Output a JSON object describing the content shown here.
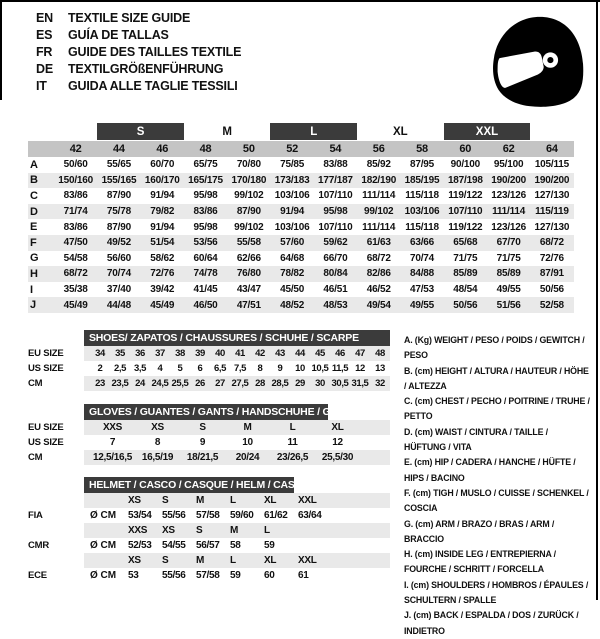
{
  "title_block": {
    "rows": [
      {
        "code": "EN",
        "text": "TEXTILE SIZE GUIDE"
      },
      {
        "code": "ES",
        "text": "GUÍA DE TALLAS"
      },
      {
        "code": "FR",
        "text": "GUIDE DES TAILLES TEXTILE"
      },
      {
        "code": "DE",
        "text": "TEXTILGRÖßENFÜHRUNG"
      },
      {
        "code": "IT",
        "text": "GUIDA ALLE TAGLIE TESSILI"
      }
    ]
  },
  "logo": {
    "icon": "racing-helmet-icon"
  },
  "colors": {
    "dark_bar": "#3b3b3b",
    "size_band": "#c4c4c4",
    "stripe": "#e9e9e9"
  },
  "main_table": {
    "groups": [
      {
        "label": "",
        "span": 1,
        "style": "none"
      },
      {
        "label": "S",
        "span": 2,
        "style": "dark"
      },
      {
        "label": "M",
        "span": 2,
        "style": "light"
      },
      {
        "label": "L",
        "span": 2,
        "style": "dark"
      },
      {
        "label": "XL",
        "span": 2,
        "style": "light"
      },
      {
        "label": "XXL",
        "span": 2,
        "style": "dark"
      },
      {
        "label": "",
        "span": 1,
        "style": "none"
      }
    ],
    "sizes": [
      "42",
      "44",
      "46",
      "48",
      "50",
      "52",
      "54",
      "56",
      "58",
      "60",
      "62",
      "64"
    ],
    "rows": [
      {
        "label": "A",
        "values": [
          "50/60",
          "55/65",
          "60/70",
          "65/75",
          "70/80",
          "75/85",
          "83/88",
          "85/92",
          "87/95",
          "90/100",
          "95/100",
          "105/115"
        ]
      },
      {
        "label": "B",
        "values": [
          "150/160",
          "155/165",
          "160/170",
          "165/175",
          "170/180",
          "173/183",
          "177/187",
          "182/190",
          "185/195",
          "187/198",
          "190/200",
          "190/200"
        ]
      },
      {
        "label": "C",
        "values": [
          "83/86",
          "87/90",
          "91/94",
          "95/98",
          "99/102",
          "103/106",
          "107/110",
          "111/114",
          "115/118",
          "119/122",
          "123/126",
          "127/130"
        ]
      },
      {
        "label": "D",
        "values": [
          "71/74",
          "75/78",
          "79/82",
          "83/86",
          "87/90",
          "91/94",
          "95/98",
          "99/102",
          "103/106",
          "107/110",
          "111/114",
          "115/119"
        ]
      },
      {
        "label": "E",
        "values": [
          "83/86",
          "87/90",
          "91/94",
          "95/98",
          "99/102",
          "103/106",
          "107/110",
          "111/114",
          "115/118",
          "119/122",
          "123/126",
          "127/130"
        ]
      },
      {
        "label": "F",
        "values": [
          "47/50",
          "49/52",
          "51/54",
          "53/56",
          "55/58",
          "57/60",
          "59/62",
          "61/63",
          "63/66",
          "65/68",
          "67/70",
          "68/72"
        ]
      },
      {
        "label": "G",
        "values": [
          "54/58",
          "56/60",
          "58/62",
          "60/64",
          "62/66",
          "64/68",
          "66/70",
          "68/72",
          "70/74",
          "71/75",
          "71/75",
          "72/76"
        ]
      },
      {
        "label": "H",
        "values": [
          "68/72",
          "70/74",
          "72/76",
          "74/78",
          "76/80",
          "78/82",
          "80/84",
          "82/86",
          "84/88",
          "85/89",
          "85/89",
          "87/91"
        ]
      },
      {
        "label": "I",
        "values": [
          "35/38",
          "37/40",
          "39/42",
          "41/45",
          "43/47",
          "45/50",
          "46/51",
          "46/52",
          "47/53",
          "48/54",
          "49/55",
          "50/56"
        ]
      },
      {
        "label": "J",
        "values": [
          "45/49",
          "44/48",
          "45/49",
          "46/50",
          "47/51",
          "48/52",
          "48/53",
          "49/54",
          "49/55",
          "50/56",
          "51/56",
          "52/58"
        ]
      }
    ]
  },
  "shoes_table": {
    "title": "SHOES/ ZAPATOS / CHAUSSURES / SCHUHE / SCARPE",
    "rows": [
      {
        "label": "EU SIZE",
        "shaded": true,
        "values": [
          "34",
          "35",
          "36",
          "37",
          "38",
          "39",
          "40",
          "41",
          "42",
          "43",
          "44",
          "45",
          "46",
          "47",
          "48"
        ]
      },
      {
        "label": "US SIZE",
        "shaded": false,
        "values": [
          "2",
          "2,5",
          "3,5",
          "4",
          "5",
          "6",
          "6,5",
          "7,5",
          "8",
          "9",
          "10",
          "10,5",
          "11,5",
          "12",
          "13"
        ]
      },
      {
        "label": "CM",
        "shaded": true,
        "values": [
          "23",
          "23,5",
          "24",
          "24,5",
          "25,5",
          "26",
          "27",
          "27,5",
          "28",
          "28,5",
          "29",
          "30",
          "30,5",
          "31,5",
          "32"
        ]
      }
    ]
  },
  "gloves_table": {
    "title": "GLOVES / GUANTES / GANTS / HANDSCHUHE / GUANTI",
    "rows": [
      {
        "label": "EU SIZE",
        "shaded": true,
        "values": [
          "XXS",
          "XS",
          "S",
          "M",
          "L",
          "XL"
        ]
      },
      {
        "label": "US SIZE",
        "shaded": false,
        "values": [
          "7",
          "8",
          "9",
          "10",
          "11",
          "12"
        ]
      },
      {
        "label": "CM",
        "shaded": true,
        "values": [
          "12,5/16,5",
          "16,5/19",
          "18/21,5",
          "20/24",
          "23/26,5",
          "25,5/30"
        ]
      }
    ]
  },
  "helmet_table": {
    "title": "HELMET / CASCO / CASQUE / HELM / CASCO",
    "sections": [
      {
        "label": "FIA",
        "unit": "Ø CM",
        "sizes": [
          "XS",
          "S",
          "M",
          "L",
          "XL",
          "XXL"
        ],
        "values": [
          "53/54",
          "55/56",
          "57/58",
          "59/60",
          "61/62",
          "63/64"
        ]
      },
      {
        "label": "CMR",
        "unit": "Ø CM",
        "sizes": [
          "XXS",
          "XS",
          "S",
          "M",
          "L",
          ""
        ],
        "values": [
          "52/53",
          "54/55",
          "56/57",
          "58",
          "59",
          ""
        ]
      },
      {
        "label": "ECE",
        "unit": "Ø CM",
        "sizes": [
          "XS",
          "S",
          "M",
          "L",
          "XL",
          "XXL"
        ],
        "values": [
          "53",
          "55/56",
          "57/58",
          "59",
          "60",
          "61"
        ]
      }
    ]
  },
  "legend": {
    "items": [
      "A. (Kg) WEIGHT / PESO / POIDS / GEWITCH / PESO",
      "B. (cm) HEIGHT / ALTURA / HAUTEUR / HÖHE / ALTEZZA",
      "C. (cm) CHEST / PECHO / POITRINE / TRUHE / PETTO",
      "D. (cm) WAIST / CINTURA / TAILLE / HÜFTUNG / VITA",
      "E. (cm) HIP / CADERA / HANCHE / HÜFTE / HIPS /  BACINO",
      "F. (cm) TIGH / MUSLO / CUISSE / SCHENKEL / COSCIA",
      "G. (cm) ARM  / BRAZO / BRAS / ARM / BRACCIO",
      "H. (cm) INSIDE LEG / ENTREPIERNA / FOURCHE / SCHRITT / FORCELLA",
      "I.  (cm) SHOULDERS / HOMBROS / ÉPAULES / SCHULTERN / SPALLE",
      "J. (cm) BACK / ESPALDA / DOS / ZURÜCK / INDIETRO"
    ]
  }
}
